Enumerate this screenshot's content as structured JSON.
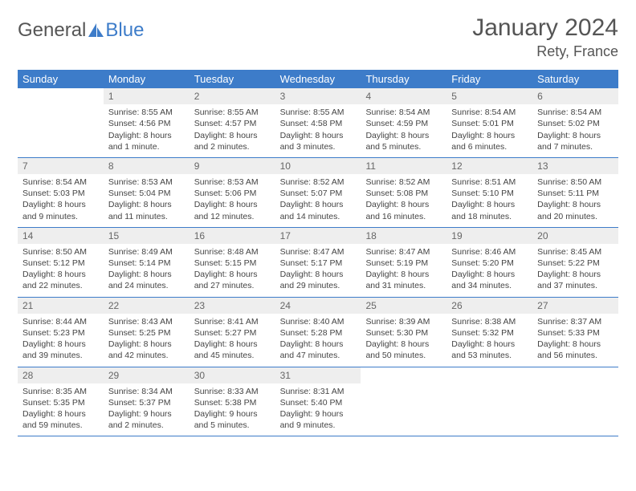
{
  "brand": {
    "part1": "General",
    "part2": "Blue"
  },
  "title": "January 2024",
  "location": "Rety, France",
  "colors": {
    "header_bg": "#3d7cc9",
    "header_text": "#ffffff",
    "daynum_bg": "#eeeeee",
    "border": "#3d7cc9",
    "page_bg": "#ffffff",
    "text": "#444444"
  },
  "day_names": [
    "Sunday",
    "Monday",
    "Tuesday",
    "Wednesday",
    "Thursday",
    "Friday",
    "Saturday"
  ],
  "weeks": [
    [
      {
        "n": "",
        "sr": "",
        "ss": "",
        "dl": ""
      },
      {
        "n": "1",
        "sr": "Sunrise: 8:55 AM",
        "ss": "Sunset: 4:56 PM",
        "dl": "Daylight: 8 hours and 1 minute."
      },
      {
        "n": "2",
        "sr": "Sunrise: 8:55 AM",
        "ss": "Sunset: 4:57 PM",
        "dl": "Daylight: 8 hours and 2 minutes."
      },
      {
        "n": "3",
        "sr": "Sunrise: 8:55 AM",
        "ss": "Sunset: 4:58 PM",
        "dl": "Daylight: 8 hours and 3 minutes."
      },
      {
        "n": "4",
        "sr": "Sunrise: 8:54 AM",
        "ss": "Sunset: 4:59 PM",
        "dl": "Daylight: 8 hours and 5 minutes."
      },
      {
        "n": "5",
        "sr": "Sunrise: 8:54 AM",
        "ss": "Sunset: 5:01 PM",
        "dl": "Daylight: 8 hours and 6 minutes."
      },
      {
        "n": "6",
        "sr": "Sunrise: 8:54 AM",
        "ss": "Sunset: 5:02 PM",
        "dl": "Daylight: 8 hours and 7 minutes."
      }
    ],
    [
      {
        "n": "7",
        "sr": "Sunrise: 8:54 AM",
        "ss": "Sunset: 5:03 PM",
        "dl": "Daylight: 8 hours and 9 minutes."
      },
      {
        "n": "8",
        "sr": "Sunrise: 8:53 AM",
        "ss": "Sunset: 5:04 PM",
        "dl": "Daylight: 8 hours and 11 minutes."
      },
      {
        "n": "9",
        "sr": "Sunrise: 8:53 AM",
        "ss": "Sunset: 5:06 PM",
        "dl": "Daylight: 8 hours and 12 minutes."
      },
      {
        "n": "10",
        "sr": "Sunrise: 8:52 AM",
        "ss": "Sunset: 5:07 PM",
        "dl": "Daylight: 8 hours and 14 minutes."
      },
      {
        "n": "11",
        "sr": "Sunrise: 8:52 AM",
        "ss": "Sunset: 5:08 PM",
        "dl": "Daylight: 8 hours and 16 minutes."
      },
      {
        "n": "12",
        "sr": "Sunrise: 8:51 AM",
        "ss": "Sunset: 5:10 PM",
        "dl": "Daylight: 8 hours and 18 minutes."
      },
      {
        "n": "13",
        "sr": "Sunrise: 8:50 AM",
        "ss": "Sunset: 5:11 PM",
        "dl": "Daylight: 8 hours and 20 minutes."
      }
    ],
    [
      {
        "n": "14",
        "sr": "Sunrise: 8:50 AM",
        "ss": "Sunset: 5:12 PM",
        "dl": "Daylight: 8 hours and 22 minutes."
      },
      {
        "n": "15",
        "sr": "Sunrise: 8:49 AM",
        "ss": "Sunset: 5:14 PM",
        "dl": "Daylight: 8 hours and 24 minutes."
      },
      {
        "n": "16",
        "sr": "Sunrise: 8:48 AM",
        "ss": "Sunset: 5:15 PM",
        "dl": "Daylight: 8 hours and 27 minutes."
      },
      {
        "n": "17",
        "sr": "Sunrise: 8:47 AM",
        "ss": "Sunset: 5:17 PM",
        "dl": "Daylight: 8 hours and 29 minutes."
      },
      {
        "n": "18",
        "sr": "Sunrise: 8:47 AM",
        "ss": "Sunset: 5:19 PM",
        "dl": "Daylight: 8 hours and 31 minutes."
      },
      {
        "n": "19",
        "sr": "Sunrise: 8:46 AM",
        "ss": "Sunset: 5:20 PM",
        "dl": "Daylight: 8 hours and 34 minutes."
      },
      {
        "n": "20",
        "sr": "Sunrise: 8:45 AM",
        "ss": "Sunset: 5:22 PM",
        "dl": "Daylight: 8 hours and 37 minutes."
      }
    ],
    [
      {
        "n": "21",
        "sr": "Sunrise: 8:44 AM",
        "ss": "Sunset: 5:23 PM",
        "dl": "Daylight: 8 hours and 39 minutes."
      },
      {
        "n": "22",
        "sr": "Sunrise: 8:43 AM",
        "ss": "Sunset: 5:25 PM",
        "dl": "Daylight: 8 hours and 42 minutes."
      },
      {
        "n": "23",
        "sr": "Sunrise: 8:41 AM",
        "ss": "Sunset: 5:27 PM",
        "dl": "Daylight: 8 hours and 45 minutes."
      },
      {
        "n": "24",
        "sr": "Sunrise: 8:40 AM",
        "ss": "Sunset: 5:28 PM",
        "dl": "Daylight: 8 hours and 47 minutes."
      },
      {
        "n": "25",
        "sr": "Sunrise: 8:39 AM",
        "ss": "Sunset: 5:30 PM",
        "dl": "Daylight: 8 hours and 50 minutes."
      },
      {
        "n": "26",
        "sr": "Sunrise: 8:38 AM",
        "ss": "Sunset: 5:32 PM",
        "dl": "Daylight: 8 hours and 53 minutes."
      },
      {
        "n": "27",
        "sr": "Sunrise: 8:37 AM",
        "ss": "Sunset: 5:33 PM",
        "dl": "Daylight: 8 hours and 56 minutes."
      }
    ],
    [
      {
        "n": "28",
        "sr": "Sunrise: 8:35 AM",
        "ss": "Sunset: 5:35 PM",
        "dl": "Daylight: 8 hours and 59 minutes."
      },
      {
        "n": "29",
        "sr": "Sunrise: 8:34 AM",
        "ss": "Sunset: 5:37 PM",
        "dl": "Daylight: 9 hours and 2 minutes."
      },
      {
        "n": "30",
        "sr": "Sunrise: 8:33 AM",
        "ss": "Sunset: 5:38 PM",
        "dl": "Daylight: 9 hours and 5 minutes."
      },
      {
        "n": "31",
        "sr": "Sunrise: 8:31 AM",
        "ss": "Sunset: 5:40 PM",
        "dl": "Daylight: 9 hours and 9 minutes."
      },
      {
        "n": "",
        "sr": "",
        "ss": "",
        "dl": ""
      },
      {
        "n": "",
        "sr": "",
        "ss": "",
        "dl": ""
      },
      {
        "n": "",
        "sr": "",
        "ss": "",
        "dl": ""
      }
    ]
  ]
}
